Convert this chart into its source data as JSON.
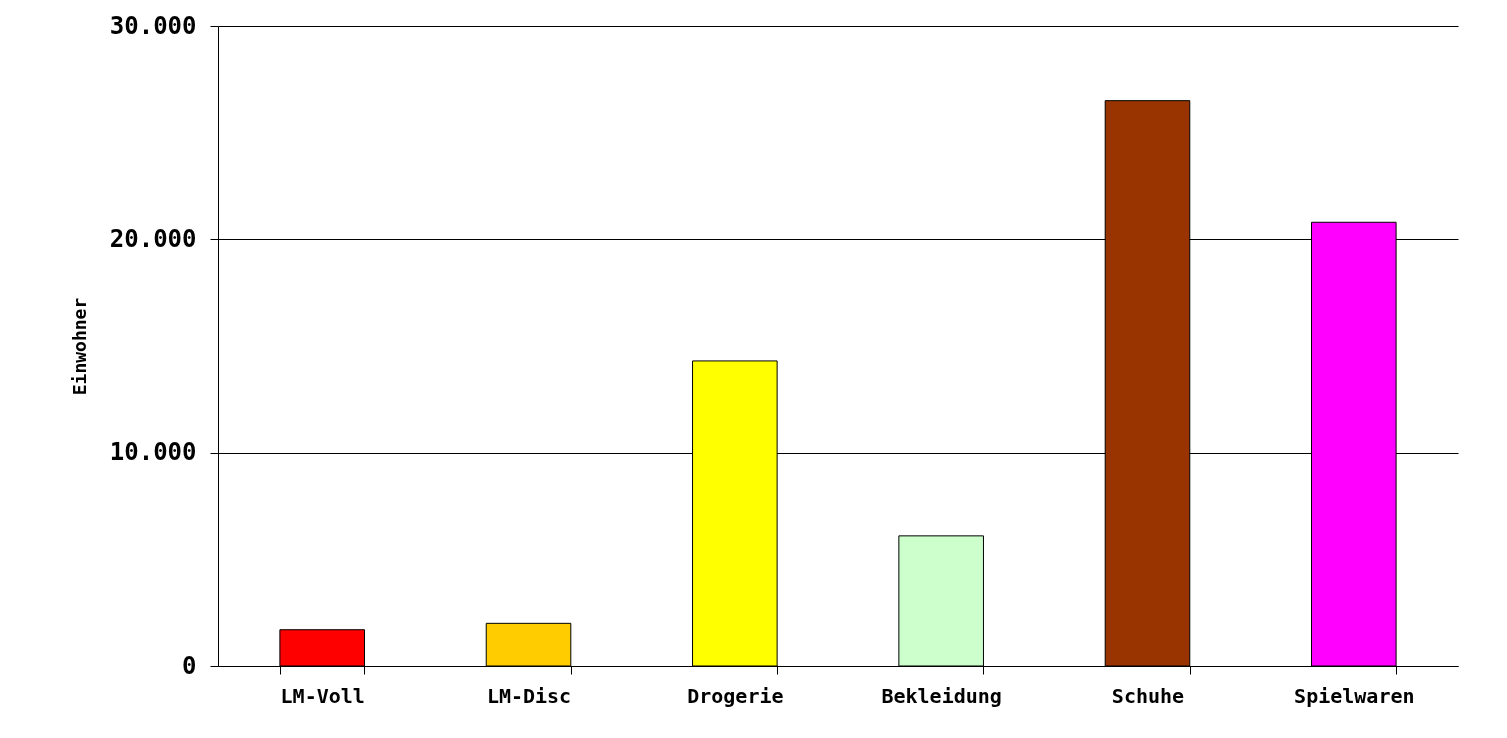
{
  "chart_data": {
    "type": "bar",
    "ylabel": "Einwohner",
    "categories": [
      "LM-Voll",
      "LM-Disc",
      "Drogerie",
      "Bekleidung",
      "Schuhe",
      "Spielwaren"
    ],
    "values": [
      1700,
      2000,
      14300,
      6100,
      26500,
      20800
    ],
    "colors": [
      "#ff0000",
      "#ffcc00",
      "#ffff00",
      "#ccffcc",
      "#993300",
      "#ff00ff"
    ],
    "ylim": [
      0,
      30000
    ],
    "yticks": [
      {
        "value": 0,
        "label": "0"
      },
      {
        "value": 10000,
        "label": "10.000"
      },
      {
        "value": 20000,
        "label": "20.000"
      },
      {
        "value": 30000,
        "label": "30.000"
      }
    ],
    "grid": "y"
  }
}
